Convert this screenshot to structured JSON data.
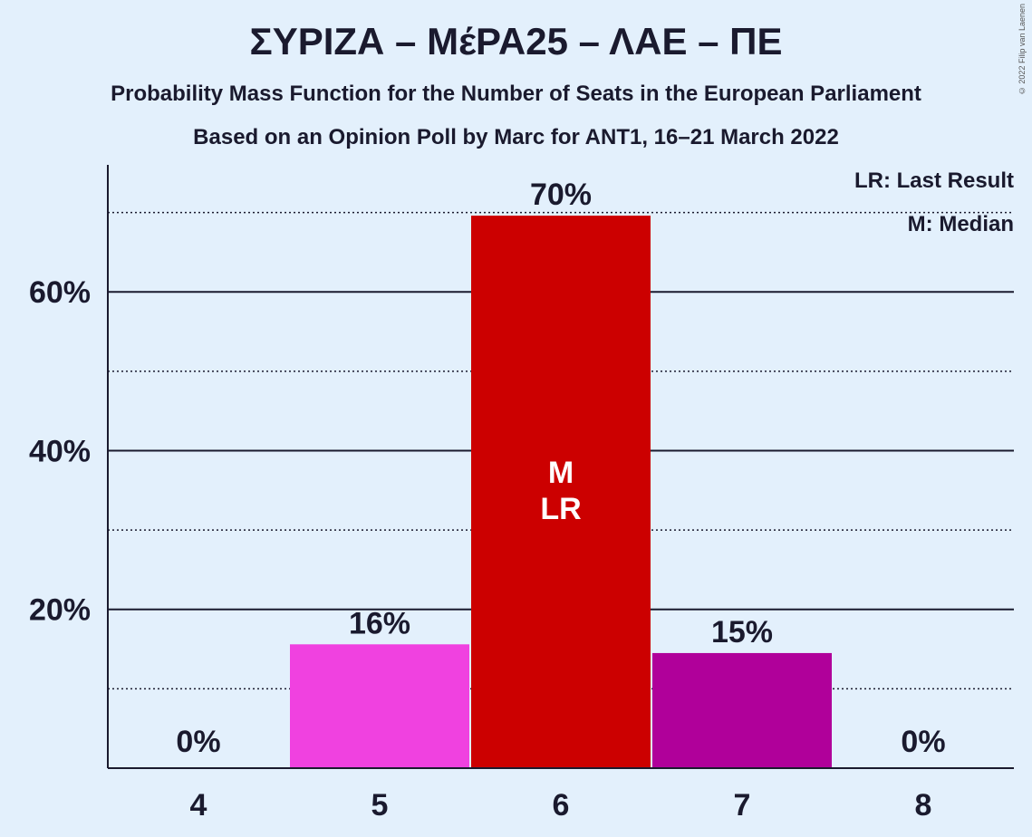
{
  "chart_data": {
    "type": "bar",
    "title": "ΣΥΡΙΖΑ – ΜέΡΑ25 – ΛΑΕ – ΠΕ",
    "subtitle": "Probability Mass Function for the Number of Seats in the European Parliament",
    "subtitle2": "Based on an Opinion Poll by Marc for ANT1, 16–21 March 2022",
    "categories": [
      "4",
      "5",
      "6",
      "7",
      "8"
    ],
    "values": [
      0,
      15.6,
      69.6,
      14.5,
      0
    ],
    "value_labels": [
      "0%",
      "16%",
      "70%",
      "15%",
      "0%"
    ],
    "bar_colors": [
      "#cc0000",
      "#f041e0",
      "#cc0000",
      "#b0009a",
      "#cc0000"
    ],
    "median_category": "6",
    "last_result_category": "6",
    "bar_marks": [
      "M",
      "LR"
    ],
    "ylim": [
      0,
      76
    ],
    "yticks": [
      20,
      40,
      60
    ],
    "ytick_labels": [
      "20%",
      "40%",
      "60%"
    ],
    "minor_gridlines": [
      10,
      30,
      50,
      70
    ],
    "grid": true,
    "legend": {
      "position": "top-right",
      "entries": [
        "LR: Last Result",
        "M: Median"
      ]
    }
  },
  "copyright": "© 2022 Filip van Laenen"
}
